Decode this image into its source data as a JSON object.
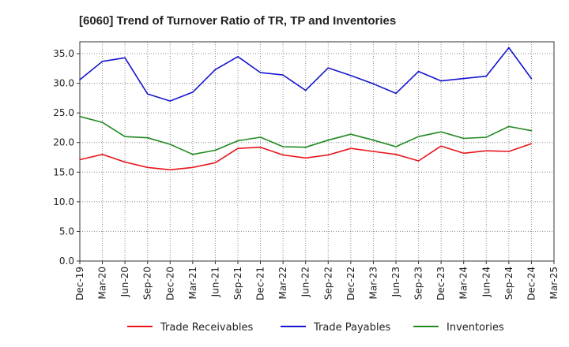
{
  "chart_data": {
    "type": "line",
    "title": "[6060]  Trend of Turnover Ratio of TR, TP and Inventories",
    "xlabel": "",
    "ylabel": "",
    "categories": [
      "Dec-19",
      "Mar-20",
      "Jun-20",
      "Sep-20",
      "Dec-20",
      "Mar-21",
      "Jun-21",
      "Sep-21",
      "Dec-21",
      "Mar-22",
      "Jun-22",
      "Sep-22",
      "Dec-22",
      "Mar-23",
      "Jun-23",
      "Sep-23",
      "Dec-23",
      "Mar-24",
      "Jun-24",
      "Sep-24",
      "Dec-24",
      "Mar-25"
    ],
    "yticks": [
      "0.0",
      "5.0",
      "10.0",
      "15.0",
      "20.0",
      "25.0",
      "30.0",
      "35.0"
    ],
    "ylim": [
      0,
      37
    ],
    "grid": true,
    "legend_position": "bottom",
    "series": [
      {
        "name": "Trade Receivables",
        "color": "#e8141b",
        "values": [
          17.1,
          18.0,
          16.7,
          15.8,
          15.4,
          15.8,
          16.6,
          19.0,
          19.2,
          17.9,
          17.4,
          17.9,
          19.0,
          18.5,
          18.0,
          16.9,
          19.4,
          18.2,
          18.6,
          18.5,
          19.8,
          null
        ]
      },
      {
        "name": "Trade Payables",
        "color": "#1515cf",
        "values": [
          30.6,
          33.7,
          34.3,
          28.2,
          27.0,
          28.5,
          32.3,
          34.5,
          31.8,
          31.4,
          28.8,
          32.6,
          31.3,
          29.9,
          28.3,
          32.0,
          30.4,
          30.8,
          31.2,
          36.0,
          30.8,
          null
        ]
      },
      {
        "name": "Inventories",
        "color": "#218a21",
        "values": [
          24.4,
          23.4,
          21.0,
          20.8,
          19.7,
          18.0,
          18.7,
          20.3,
          20.9,
          19.3,
          19.2,
          20.4,
          21.4,
          20.4,
          19.3,
          21.0,
          21.8,
          20.7,
          20.9,
          22.7,
          22.0,
          null
        ]
      }
    ]
  }
}
